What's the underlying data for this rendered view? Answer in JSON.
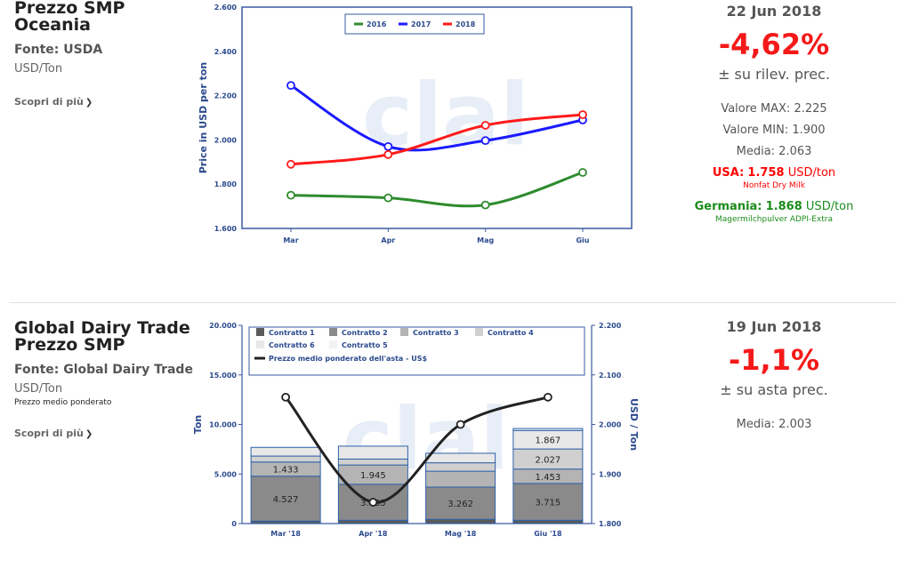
{
  "section1": {
    "title_line1": "Prezzo SMP",
    "title_line2": "Oceania",
    "source": "Fonte: USDA",
    "unit": "USD/Ton",
    "more_link": "Scopri di più",
    "date": "22 Jun 2018",
    "change": "-4,62%",
    "change_label": "± su rilev. prec.",
    "max": "Valore MAX: 2.225",
    "min": "Valore MIN: 1.900",
    "avg": "Media: 2.063",
    "usa": {
      "name": "USA:",
      "value": "1.758",
      "unit": "USD/ton",
      "product": "Nonfat Dry Milk"
    },
    "germany": {
      "name": "Germania:",
      "value": "1.868",
      "unit": "USD/ton",
      "product": "Magermilchpulver ADPI-Extra"
    }
  },
  "section2": {
    "title_line1": "Global Dairy Trade",
    "title_line2": "Prezzo SMP",
    "source": "Fonte: Global Dairy Trade",
    "unit": "USD/Ton",
    "note": "Prezzo medio ponderato",
    "more_link": "Scopri di più",
    "date": "19 Jun 2018",
    "change": "-1,1%",
    "change_label": "± su asta prec.",
    "avg": "Media: 2.003"
  },
  "watermark": "clal",
  "chart_data": [
    {
      "type": "line",
      "title": "",
      "xlabel": "",
      "ylabel": "Price in USD per ton",
      "categories": [
        "Mar",
        "Apr",
        "Mag",
        "Giu"
      ],
      "ylim": [
        1600,
        2600
      ],
      "yticks": [
        "1.600",
        "1.800",
        "2.000",
        "2.200",
        "2.400",
        "2.600"
      ],
      "legend_position": "top-center",
      "grid": false,
      "series": [
        {
          "name": "2016",
          "color": "#2e8b2e",
          "values": [
            1750,
            1738,
            1706,
            1853
          ]
        },
        {
          "name": "2017",
          "color": "#1a1aff",
          "values": [
            2246,
            1970,
            1997,
            2090
          ]
        },
        {
          "name": "2018",
          "color": "#ff1a1a",
          "values": [
            1890,
            1934,
            2066,
            2114
          ]
        }
      ]
    },
    {
      "type": "bar",
      "stacked": true,
      "title": "",
      "xlabel": "",
      "ylabel": "Ton",
      "ylabel_right": "USD / Ton",
      "categories": [
        "Mar '18",
        "Apr '18",
        "Mag '18",
        "Giu '18"
      ],
      "ylim": [
        0,
        20000
      ],
      "yticks": [
        "0",
        "5.000",
        "10.000",
        "15.000",
        "20.000"
      ],
      "ylim_right": [
        1800,
        2200
      ],
      "yticks_right": [
        "1.800",
        "1.900",
        "2.000",
        "2.100",
        "2.200"
      ],
      "legend_position": "top",
      "grid": false,
      "series": [
        {
          "name": "Contratto 1",
          "color": "#5a5a5a",
          "values": [
            250,
            330,
            420,
            330
          ],
          "labels": [
            "",
            "",
            "",
            ""
          ]
        },
        {
          "name": "Contratto 2",
          "color": "#8a8a8a",
          "values": [
            4527,
            3635,
            3262,
            3715
          ],
          "labels": [
            "4.527",
            "3.635",
            "3.262",
            "3.715"
          ]
        },
        {
          "name": "Contratto 3",
          "color": "#b4b4b4",
          "values": [
            1433,
            1945,
            1600,
            1453
          ],
          "labels": [
            "1.433",
            "1.945",
            "",
            "1.453"
          ]
        },
        {
          "name": "Contratto 4",
          "color": "#d0d0d0",
          "values": [
            600,
            600,
            850,
            2027
          ],
          "labels": [
            "",
            "",
            "",
            "2.027"
          ]
        },
        {
          "name": "Contratto 6",
          "color": "#e8e8e8",
          "values": [
            880,
            1300,
            960,
            1867
          ],
          "labels": [
            "",
            "",
            "",
            "1.867"
          ]
        },
        {
          "name": "Contratto 5",
          "color": "#f2f2f2",
          "values": [
            0,
            0,
            0,
            200
          ],
          "labels": [
            "",
            "",
            "",
            ""
          ]
        }
      ],
      "line_series": {
        "name": "Prezzo medio ponderato dell'asta - US$",
        "color": "#222222",
        "values": [
          2055,
          1843,
          2000,
          2055
        ]
      }
    }
  ]
}
